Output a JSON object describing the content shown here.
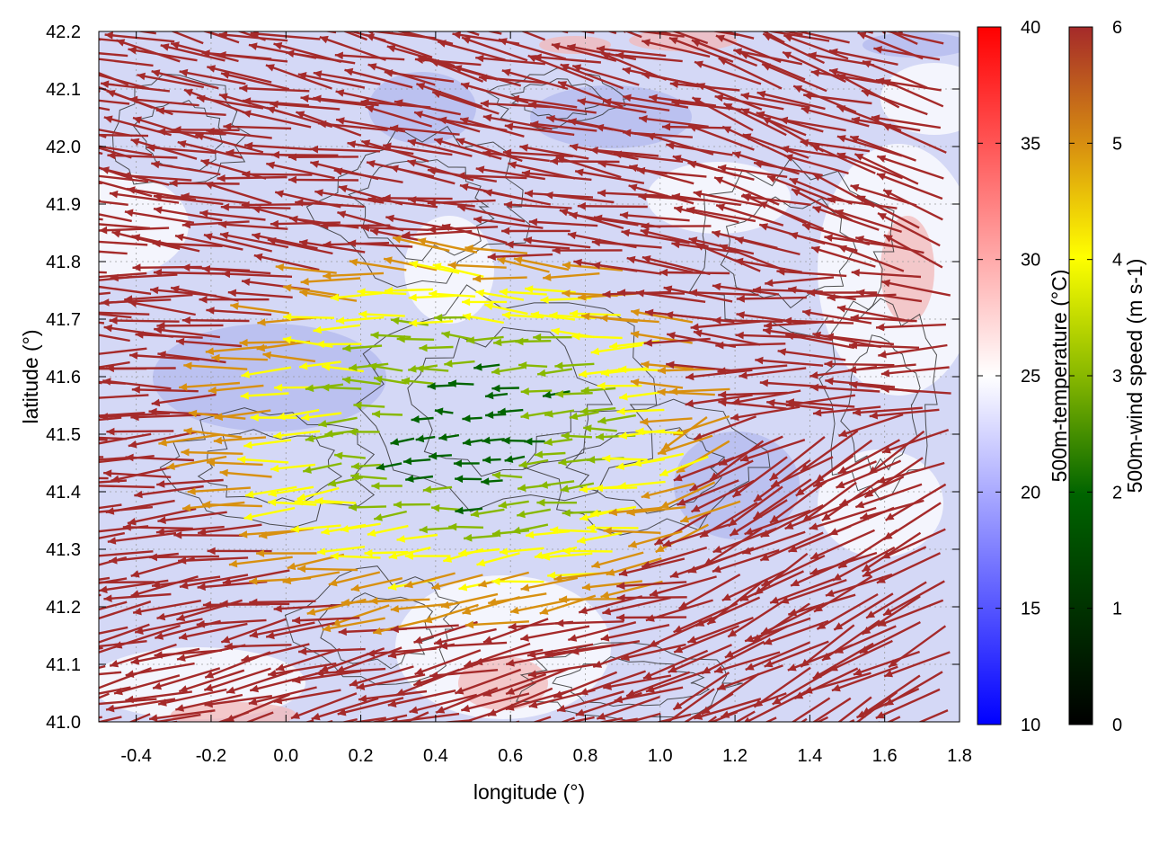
{
  "chart_data": {
    "type": "vector-field",
    "title": "",
    "xlabel": "longitude (°)",
    "ylabel": "latitude (°)",
    "xlim": [
      -0.5,
      1.8
    ],
    "ylim": [
      41.0,
      42.2
    ],
    "xticks": [
      "-0.4",
      "-0.2",
      "0.0",
      "0.2",
      "0.4",
      "0.6",
      "0.8",
      "1.0",
      "1.2",
      "1.4",
      "1.6",
      "1.8"
    ],
    "yticks": [
      "41.0",
      "41.1",
      "41.2",
      "41.3",
      "41.4",
      "41.5",
      "41.6",
      "41.7",
      "41.8",
      "41.9",
      "42.0",
      "42.1",
      "42.2"
    ],
    "grid": true,
    "background_field": {
      "name": "500m-temperature",
      "units": "°C",
      "colorbar_label": "500m-temperature (°C)",
      "range": [
        10,
        40
      ],
      "ticks": [
        "10",
        "15",
        "20",
        "25",
        "30",
        "35",
        "40"
      ],
      "colors": [
        "#0000ff",
        "#ffffff",
        "#ff0000"
      ]
    },
    "vector_field": {
      "name": "500m-wind speed",
      "units": "m s-1",
      "colorbar_label": "500m-wind speed (m s-1)",
      "range": [
        0,
        6
      ],
      "ticks": [
        "0",
        "1",
        "2",
        "3",
        "4",
        "5",
        "6"
      ],
      "colors": [
        "#000000",
        "#006400",
        "#88b800",
        "#ffff00",
        "#d89010",
        "#a52a2a"
      ]
    },
    "flow_description": "Strong westward flow (~6 m/s) along northern and southern edges, weak winds (1-3 m/s) in central basin around 0.4-0.9°E, 41.3-41.6°N",
    "contours": "terrain elevation lines (dark gray)"
  }
}
